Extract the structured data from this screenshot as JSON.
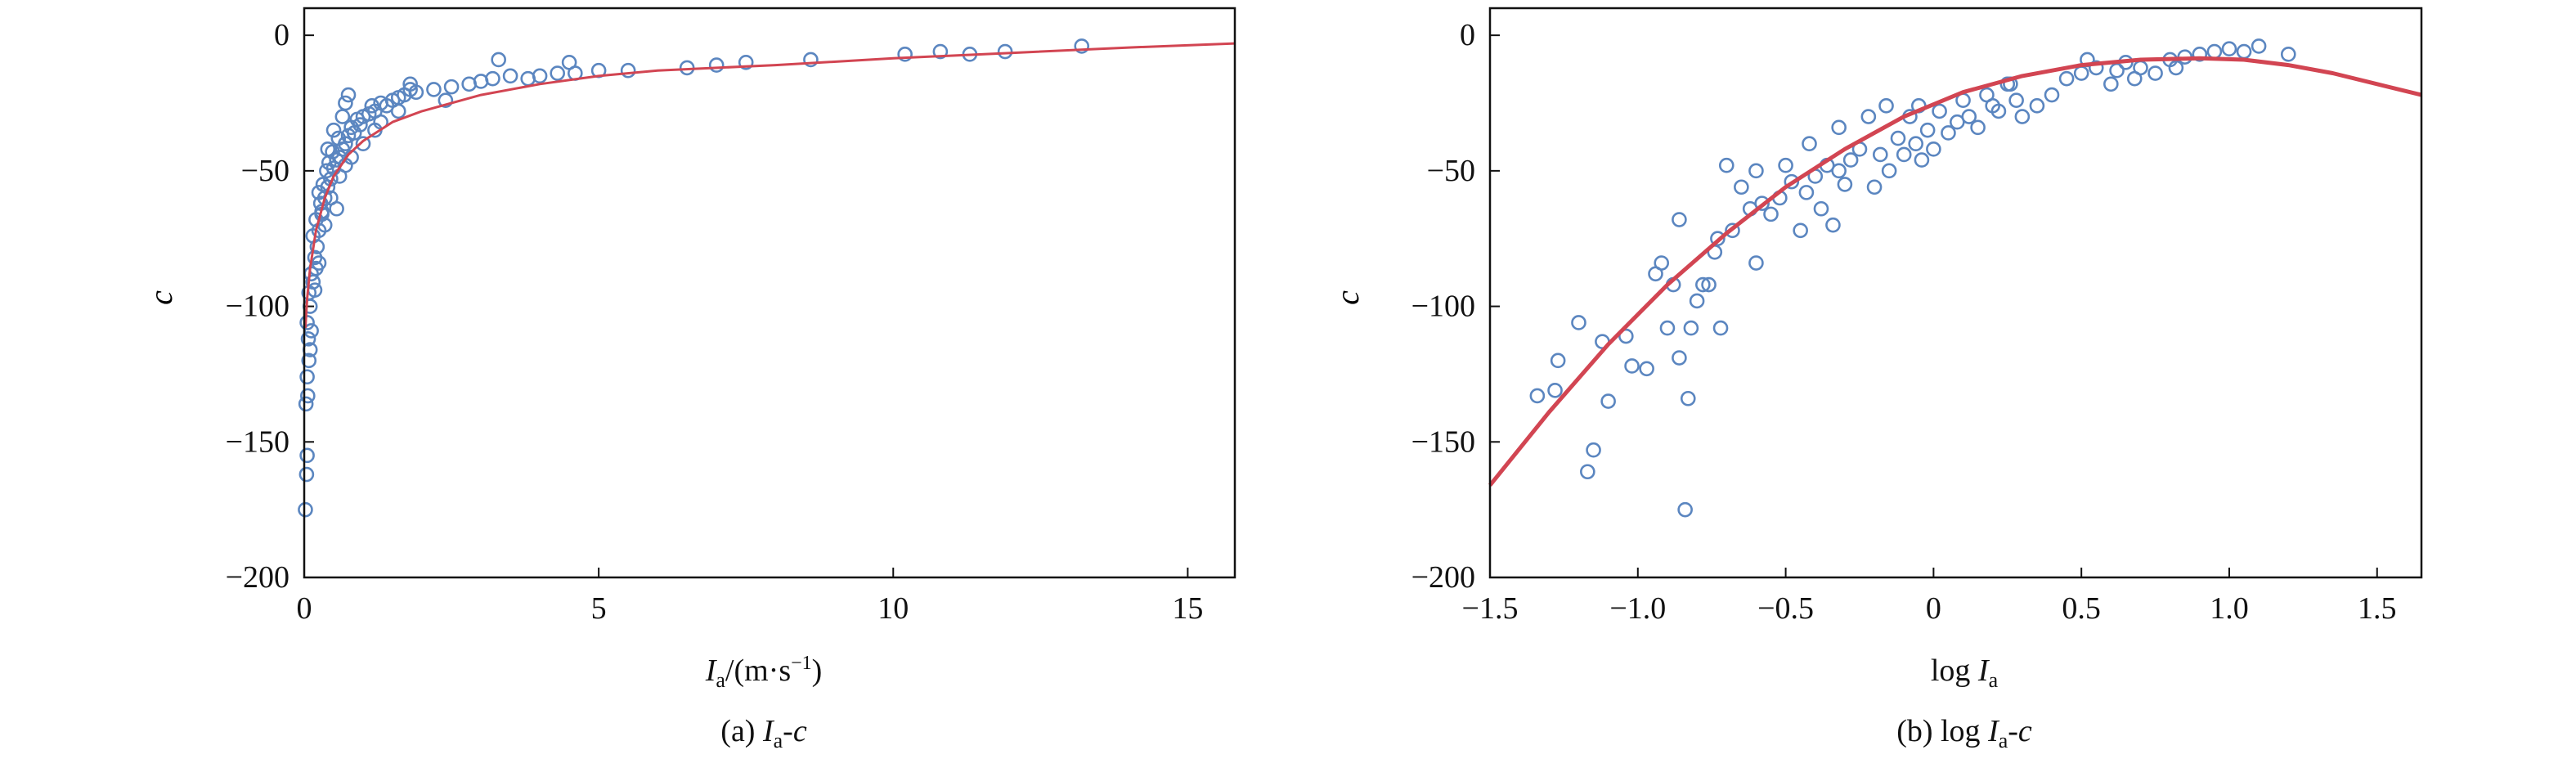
{
  "colors": {
    "marker_stroke": "#5b86c0",
    "fit_line": "#d24552",
    "axis": "#111111",
    "background": "#ffffff"
  },
  "chart_data": [
    {
      "type": "scatter",
      "caption": {
        "label": "(a) ",
        "var": "I",
        "sub": "a",
        "rest": "-",
        "var2": "c"
      },
      "xlabel": {
        "var": "I",
        "sub": "a",
        "unit_pre": "/(m·s",
        "sup": "−1",
        "unit_post": ")"
      },
      "ylabel": "c",
      "xlim": [
        0,
        15.8
      ],
      "ylim": [
        -200,
        10
      ],
      "xticks": [
        0,
        5,
        10,
        15
      ],
      "yticks": [
        0,
        -50,
        -100,
        -150,
        -200
      ],
      "xtick_labels": [
        "0",
        "5",
        "10",
        "15"
      ],
      "ytick_labels": [
        "0",
        "−50",
        "−100",
        "−150",
        "−200"
      ],
      "grid": false,
      "legend": "none",
      "series": [
        {
          "kind": "markers",
          "points": [
            [
              0.02,
              -175
            ],
            [
              0.04,
              -162
            ],
            [
              0.05,
              -155
            ],
            [
              0.03,
              -136
            ],
            [
              0.06,
              -133
            ],
            [
              0.05,
              -126
            ],
            [
              0.08,
              -120
            ],
            [
              0.1,
              -116
            ],
            [
              0.07,
              -112
            ],
            [
              0.12,
              -109
            ],
            [
              0.05,
              -106
            ],
            [
              0.1,
              -100
            ],
            [
              0.08,
              -95
            ],
            [
              0.15,
              -91
            ],
            [
              0.12,
              -88
            ],
            [
              0.2,
              -86
            ],
            [
              0.18,
              -82
            ],
            [
              0.22,
              -78
            ],
            [
              0.15,
              -74
            ],
            [
              0.25,
              -72
            ],
            [
              0.2,
              -68
            ],
            [
              0.3,
              -66
            ],
            [
              0.28,
              -62
            ],
            [
              0.35,
              -60
            ],
            [
              0.25,
              -58
            ],
            [
              0.4,
              -56
            ],
            [
              0.32,
              -55
            ],
            [
              0.45,
              -53
            ],
            [
              0.38,
              -50
            ],
            [
              0.5,
              -49
            ],
            [
              0.42,
              -47
            ],
            [
              0.55,
              -46
            ],
            [
              0.6,
              -45
            ],
            [
              0.48,
              -43
            ],
            [
              0.65,
              -42
            ],
            [
              0.7,
              -40
            ],
            [
              0.58,
              -38
            ],
            [
              0.75,
              -37
            ],
            [
              0.85,
              -36
            ],
            [
              0.8,
              -34
            ],
            [
              0.95,
              -33
            ],
            [
              0.9,
              -31
            ],
            [
              1.0,
              -30
            ],
            [
              1.1,
              -29
            ],
            [
              1.2,
              -28
            ],
            [
              1.15,
              -26
            ],
            [
              1.3,
              -25
            ],
            [
              1.4,
              -26
            ],
            [
              1.5,
              -24
            ],
            [
              1.6,
              -23
            ],
            [
              1.7,
              -22
            ],
            [
              1.8,
              -20
            ],
            [
              1.9,
              -21
            ],
            [
              2.2,
              -20
            ],
            [
              2.5,
              -19
            ],
            [
              2.8,
              -18
            ],
            [
              3.0,
              -17
            ],
            [
              3.2,
              -16
            ],
            [
              3.5,
              -15
            ],
            [
              3.8,
              -16
            ],
            [
              4.0,
              -15
            ],
            [
              4.3,
              -14
            ],
            [
              4.6,
              -14
            ],
            [
              5.0,
              -13
            ],
            [
              5.5,
              -13
            ],
            [
              6.5,
              -12
            ],
            [
              7.0,
              -11
            ],
            [
              7.5,
              -10
            ],
            [
              8.6,
              -9
            ],
            [
              10.2,
              -7
            ],
            [
              10.8,
              -6
            ],
            [
              11.3,
              -7
            ],
            [
              11.9,
              -6
            ],
            [
              13.2,
              -4
            ],
            [
              0.3,
              -65
            ],
            [
              0.45,
              -60
            ],
            [
              0.6,
              -52
            ],
            [
              0.7,
              -48
            ],
            [
              0.65,
              -30
            ],
            [
              0.7,
              -25
            ],
            [
              0.8,
              -45
            ],
            [
              1.0,
              -40
            ],
            [
              1.3,
              -32
            ],
            [
              1.6,
              -28
            ],
            [
              0.35,
              -70
            ],
            [
              0.55,
              -64
            ],
            [
              0.25,
              -84
            ],
            [
              0.18,
              -94
            ],
            [
              0.75,
              -22
            ],
            [
              0.5,
              -35
            ],
            [
              0.4,
              -42
            ],
            [
              1.8,
              -18
            ],
            [
              2.4,
              -24
            ],
            [
              3.3,
              -9
            ],
            [
              4.5,
              -10
            ],
            [
              1.2,
              -35
            ]
          ]
        },
        {
          "kind": "fit-curve",
          "points": [
            [
              0.02,
              -108
            ],
            [
              0.05,
              -97
            ],
            [
              0.1,
              -86
            ],
            [
              0.2,
              -72
            ],
            [
              0.35,
              -60
            ],
            [
              0.5,
              -52
            ],
            [
              0.75,
              -44
            ],
            [
              1.0,
              -39
            ],
            [
              1.5,
              -32
            ],
            [
              2.0,
              -28
            ],
            [
              3.0,
              -22
            ],
            [
              4.0,
              -18
            ],
            [
              5.0,
              -15
            ],
            [
              6.0,
              -13
            ],
            [
              8.0,
              -11
            ],
            [
              10.0,
              -8.5
            ],
            [
              12.0,
              -6.5
            ],
            [
              14.0,
              -4.5
            ],
            [
              15.8,
              -3
            ]
          ]
        }
      ]
    },
    {
      "type": "scatter",
      "caption": {
        "label": "(b) log ",
        "var": "I",
        "sub": "a",
        "rest": "-",
        "var2": "c"
      },
      "xlabel": {
        "pre": "log ",
        "var": "I",
        "sub": "a"
      },
      "ylabel": "c",
      "xlim": [
        -1.5,
        1.65
      ],
      "ylim": [
        -200,
        10
      ],
      "xticks": [
        -1.5,
        -1.0,
        -0.5,
        0,
        0.5,
        1.0,
        1.5
      ],
      "yticks": [
        0,
        -50,
        -100,
        -150,
        -200
      ],
      "xtick_labels": [
        "−1.5",
        "−1.0",
        "−0.5",
        "0",
        "0.5",
        "1.0",
        "1.5"
      ],
      "ytick_labels": [
        "0",
        "−50",
        "−100",
        "−150",
        "−200"
      ],
      "grid": false,
      "legend": "none",
      "series": [
        {
          "kind": "markers",
          "points": [
            [
              -1.34,
              -133
            ],
            [
              -1.28,
              -131
            ],
            [
              -1.27,
              -120
            ],
            [
              -1.2,
              -106
            ],
            [
              -1.17,
              -161
            ],
            [
              -1.15,
              -153
            ],
            [
              -1.12,
              -113
            ],
            [
              -1.1,
              -135
            ],
            [
              -1.04,
              -111
            ],
            [
              -1.02,
              -122
            ],
            [
              -0.97,
              -123
            ],
            [
              -0.94,
              -88
            ],
            [
              -0.92,
              -84
            ],
            [
              -0.9,
              -108
            ],
            [
              -0.88,
              -92
            ],
            [
              -0.86,
              -119
            ],
            [
              -0.84,
              -175
            ],
            [
              -0.83,
              -134
            ],
            [
              -0.82,
              -108
            ],
            [
              -0.8,
              -98
            ],
            [
              -0.78,
              -92
            ],
            [
              -0.76,
              -92
            ],
            [
              -0.74,
              -80
            ],
            [
              -0.73,
              -75
            ],
            [
              -0.72,
              -108
            ],
            [
              -0.7,
              -48
            ],
            [
              -0.68,
              -72
            ],
            [
              -0.65,
              -56
            ],
            [
              -0.62,
              -64
            ],
            [
              -0.6,
              -84
            ],
            [
              -0.58,
              -62
            ],
            [
              -0.55,
              -66
            ],
            [
              -0.52,
              -60
            ],
            [
              -0.5,
              -48
            ],
            [
              -0.48,
              -54
            ],
            [
              -0.45,
              -72
            ],
            [
              -0.43,
              -58
            ],
            [
              -0.42,
              -40
            ],
            [
              -0.4,
              -52
            ],
            [
              -0.38,
              -64
            ],
            [
              -0.36,
              -48
            ],
            [
              -0.34,
              -70
            ],
            [
              -0.32,
              -50
            ],
            [
              -0.3,
              -55
            ],
            [
              -0.28,
              -46
            ],
            [
              -0.25,
              -42
            ],
            [
              -0.22,
              -30
            ],
            [
              -0.2,
              -56
            ],
            [
              -0.18,
              -44
            ],
            [
              -0.16,
              -26
            ],
            [
              -0.15,
              -50
            ],
            [
              -0.12,
              -38
            ],
            [
              -0.1,
              -44
            ],
            [
              -0.08,
              -30
            ],
            [
              -0.06,
              -40
            ],
            [
              -0.04,
              -46
            ],
            [
              -0.02,
              -35
            ],
            [
              0.0,
              -42
            ],
            [
              0.02,
              -28
            ],
            [
              0.05,
              -36
            ],
            [
              0.08,
              -32
            ],
            [
              0.1,
              -24
            ],
            [
              0.12,
              -30
            ],
            [
              0.15,
              -34
            ],
            [
              0.18,
              -22
            ],
            [
              0.2,
              -26
            ],
            [
              0.22,
              -28
            ],
            [
              0.25,
              -18
            ],
            [
              0.28,
              -24
            ],
            [
              0.3,
              -30
            ],
            [
              0.35,
              -26
            ],
            [
              0.4,
              -22
            ],
            [
              0.45,
              -16
            ],
            [
              0.5,
              -14
            ],
            [
              0.52,
              -9
            ],
            [
              0.55,
              -12
            ],
            [
              0.6,
              -18
            ],
            [
              0.62,
              -13
            ],
            [
              0.65,
              -10
            ],
            [
              0.68,
              -16
            ],
            [
              0.7,
              -12
            ],
            [
              0.75,
              -14
            ],
            [
              0.8,
              -9
            ],
            [
              0.82,
              -12
            ],
            [
              0.85,
              -8
            ],
            [
              0.9,
              -7
            ],
            [
              0.95,
              -6
            ],
            [
              1.0,
              -5
            ],
            [
              1.05,
              -6
            ],
            [
              1.1,
              -4
            ],
            [
              1.2,
              -7
            ],
            [
              -0.86,
              -68
            ],
            [
              -0.6,
              -50
            ],
            [
              -0.32,
              -34
            ],
            [
              -0.05,
              -26
            ],
            [
              0.26,
              -18
            ]
          ]
        },
        {
          "kind": "fit-curve",
          "points": [
            [
              -1.5,
              -166
            ],
            [
              -1.3,
              -139
            ],
            [
              -1.1,
              -114
            ],
            [
              -0.9,
              -92
            ],
            [
              -0.7,
              -73
            ],
            [
              -0.5,
              -56
            ],
            [
              -0.3,
              -42
            ],
            [
              -0.1,
              -30
            ],
            [
              0.1,
              -21
            ],
            [
              0.3,
              -15
            ],
            [
              0.5,
              -11
            ],
            [
              0.7,
              -9
            ],
            [
              0.9,
              -8.5
            ],
            [
              1.05,
              -9
            ],
            [
              1.2,
              -11
            ],
            [
              1.35,
              -14
            ],
            [
              1.5,
              -18
            ],
            [
              1.65,
              -22
            ]
          ]
        }
      ]
    }
  ]
}
